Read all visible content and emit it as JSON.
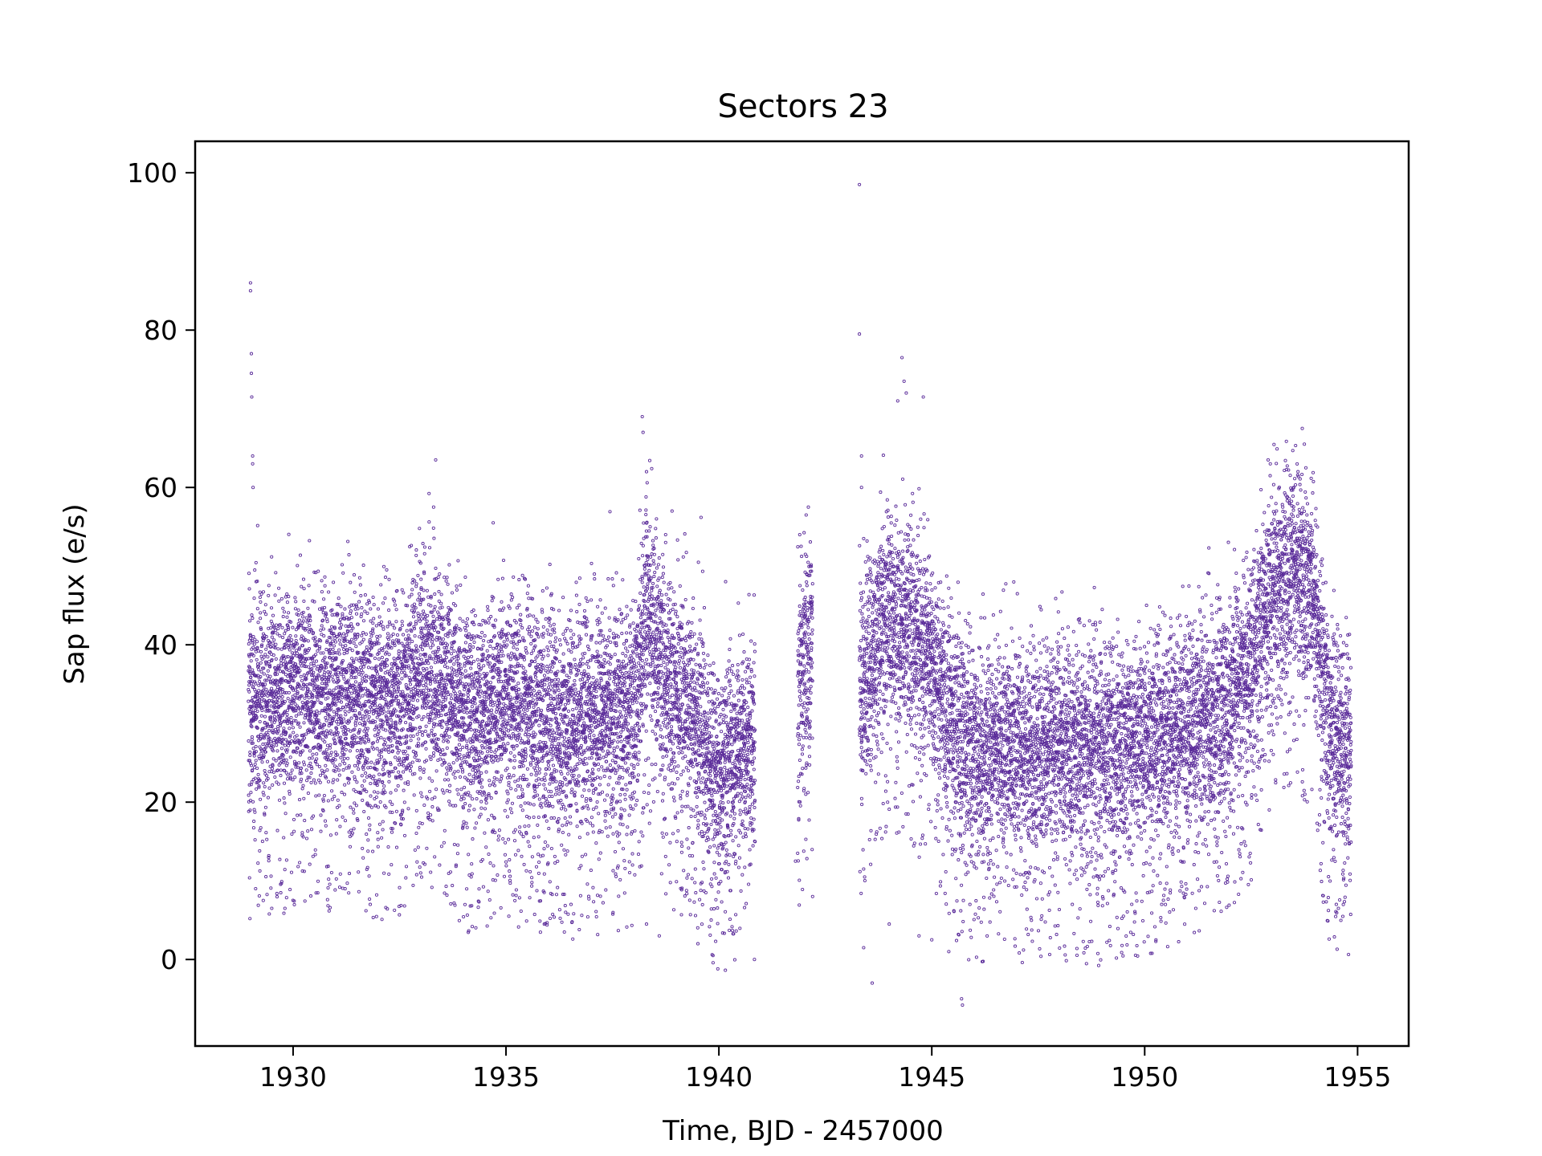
{
  "chart_data": {
    "type": "scatter",
    "title": "Sectors 23",
    "xlabel": "Time, BJD - 2457000",
    "ylabel": "Sap flux (e/s)",
    "xlim": [
      1927.7,
      1956.2
    ],
    "ylim": [
      -11,
      104
    ],
    "xticks": [
      1930,
      1935,
      1940,
      1945,
      1950,
      1955
    ],
    "yticks": [
      0,
      20,
      40,
      60,
      80,
      100
    ],
    "grid": false,
    "legend": "none",
    "marker_color": "#5b2c9a",
    "series": [
      {
        "segments": [
          {
            "x_range": [
              1928.95,
              1940.85
            ],
            "baseline": [
              [
                1928.95,
                33
              ],
              [
                1930.0,
                34
              ],
              [
                1931.0,
                34
              ],
              [
                1932.0,
                33
              ],
              [
                1932.5,
                32
              ],
              [
                1933.0,
                38
              ],
              [
                1933.5,
                36
              ],
              [
                1934.0,
                31
              ],
              [
                1935.0,
                33
              ],
              [
                1936.0,
                30
              ],
              [
                1937.0,
                31
              ],
              [
                1938.0,
                32
              ],
              [
                1938.3,
                45
              ],
              [
                1938.8,
                35
              ],
              [
                1939.5,
                30
              ],
              [
                1940.0,
                23
              ],
              [
                1940.5,
                27
              ],
              [
                1940.85,
                28
              ]
            ],
            "spread": 6.5
          },
          {
            "x_range": [
              1941.85,
              1942.2
            ],
            "baseline": [
              [
                1941.85,
                32
              ],
              [
                1942.0,
                38
              ],
              [
                1942.2,
                42
              ]
            ],
            "spread": 7
          },
          {
            "x_range": [
              1943.3,
              1954.85
            ],
            "baseline": [
              [
                1943.3,
                35
              ],
              [
                1944.0,
                45
              ],
              [
                1944.5,
                42
              ],
              [
                1945.0,
                38
              ],
              [
                1945.5,
                30
              ],
              [
                1946.0,
                27
              ],
              [
                1947.0,
                27
              ],
              [
                1948.0,
                28
              ],
              [
                1949.0,
                27
              ],
              [
                1950.0,
                28
              ],
              [
                1951.0,
                30
              ],
              [
                1952.0,
                33
              ],
              [
                1952.5,
                38
              ],
              [
                1953.0,
                47
              ],
              [
                1953.5,
                50
              ],
              [
                1954.0,
                45
              ],
              [
                1954.3,
                30
              ],
              [
                1954.85,
                26
              ]
            ],
            "spread": 6.5
          }
        ],
        "outliers": [
          [
            1929.0,
            86
          ],
          [
            1929.0,
            85
          ],
          [
            1929.02,
            77
          ],
          [
            1929.02,
            74.5
          ],
          [
            1929.03,
            71.5
          ],
          [
            1929.05,
            64
          ],
          [
            1929.05,
            63
          ],
          [
            1929.06,
            60
          ],
          [
            1929.1,
            49.5
          ],
          [
            1929.12,
            9
          ],
          [
            1929.3,
            7.5
          ],
          [
            1929.5,
            6.5
          ],
          [
            1933.35,
            63.5
          ],
          [
            1933.3,
            57.5
          ],
          [
            1934.7,
            55.5
          ],
          [
            1938.2,
            69
          ],
          [
            1938.22,
            67
          ],
          [
            1938.3,
            62
          ],
          [
            1938.9,
            57
          ],
          [
            1938.75,
            54
          ],
          [
            1938.75,
            53
          ],
          [
            1935.9,
            4.5
          ],
          [
            1936.4,
            6
          ],
          [
            1938.3,
            4.5
          ],
          [
            1938.6,
            3
          ],
          [
            1943.3,
            98.5
          ],
          [
            1943.3,
            79.5
          ],
          [
            1943.35,
            64
          ],
          [
            1943.35,
            60
          ],
          [
            1943.4,
            53.5
          ],
          [
            1944.3,
            76.5
          ],
          [
            1944.35,
            73.5
          ],
          [
            1944.4,
            72
          ],
          [
            1944.2,
            71
          ],
          [
            1944.8,
            71.5
          ],
          [
            1943.4,
            11.5
          ],
          [
            1943.4,
            1.5
          ],
          [
            1943.6,
            -3
          ],
          [
            1944.0,
            4.5
          ],
          [
            1944.7,
            3
          ],
          [
            1945.0,
            2.5
          ],
          [
            1945.4,
            1
          ],
          [
            1945.7,
            -5
          ],
          [
            1945.72,
            -5.8
          ],
          [
            1942.1,
            57.5
          ],
          [
            1942.05,
            56.5
          ],
          [
            1941.9,
            54
          ],
          [
            1941.8,
            12.5
          ],
          [
            1941.85,
            13.5
          ],
          [
            1942.2,
            8
          ],
          [
            1952.9,
            63.5
          ],
          [
            1952.95,
            63
          ],
          [
            1953.5,
            60
          ],
          [
            1953.7,
            67.5
          ],
          [
            1953.75,
            65.5
          ],
          [
            1953.6,
            62
          ],
          [
            1954.5,
            7
          ],
          [
            1954.55,
            6.5
          ],
          [
            1949.5,
            5.5
          ],
          [
            1951.2,
            6.5
          ],
          [
            1950.4,
            7
          ],
          [
            1948.3,
            7
          ]
        ]
      }
    ]
  }
}
